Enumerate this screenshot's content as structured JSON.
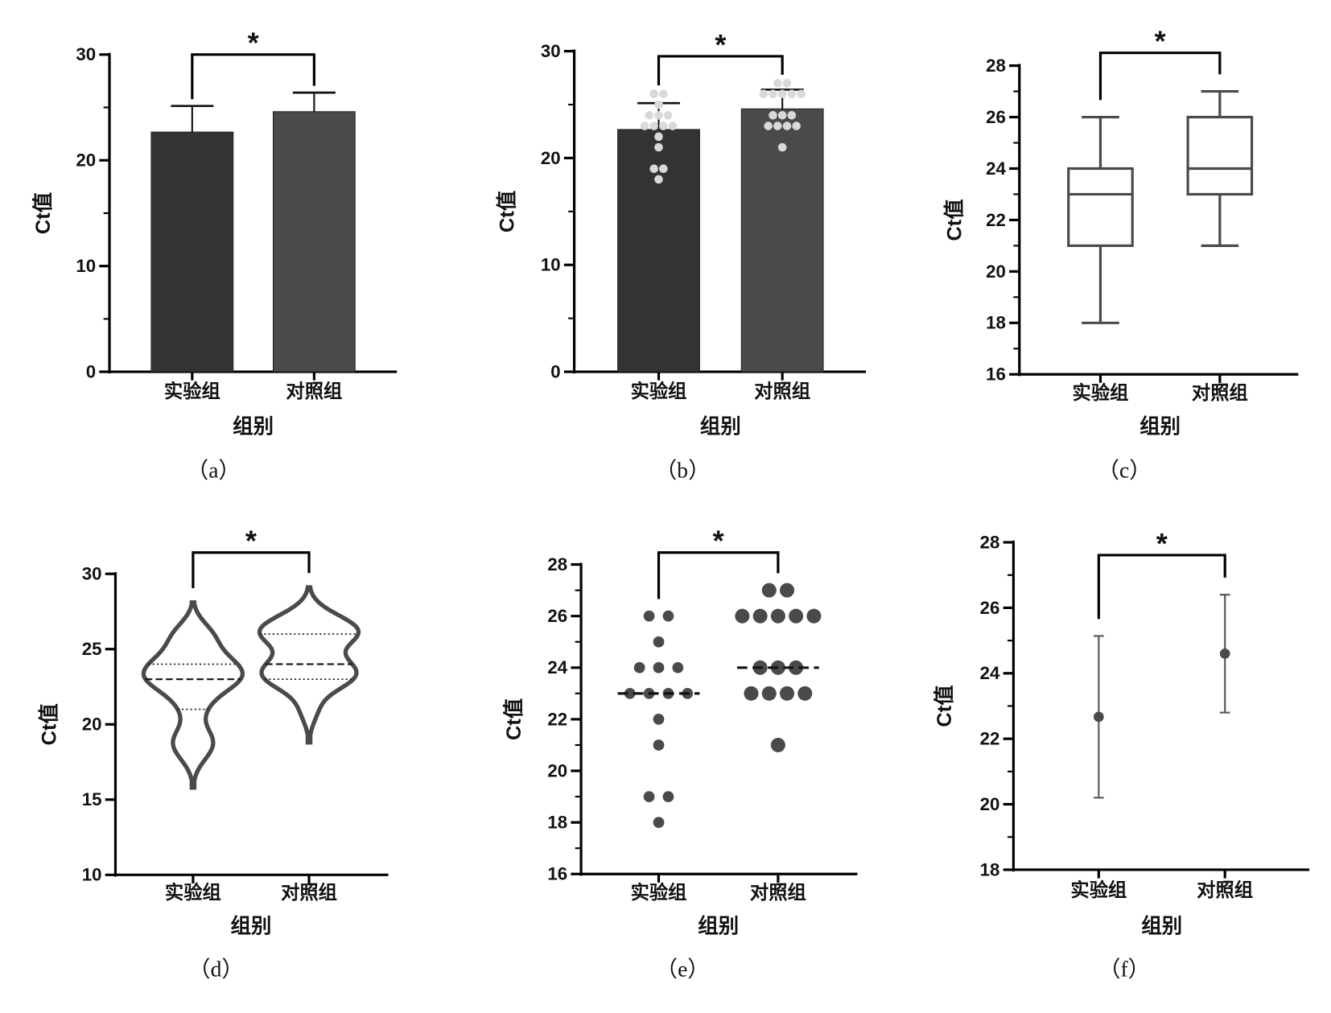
{
  "groups": [
    "实验组",
    "对照组"
  ],
  "chart_data": [
    {
      "id": "a",
      "type": "bar",
      "caption": "（a）",
      "xlabel": "组别",
      "ylabel": "Ct值",
      "ylim": [
        0,
        30
      ],
      "ticks": [
        0,
        10,
        20,
        30
      ],
      "minor_tick_step": 5,
      "significance": "*",
      "colors": [
        "#333333",
        "#4a4a4a"
      ],
      "series": [
        {
          "name": "实验组",
          "mean": 22.67,
          "sd": 2.47
        },
        {
          "name": "对照组",
          "mean": 24.6,
          "sd": 1.8
        }
      ]
    },
    {
      "id": "b",
      "type": "bar",
      "caption": "（b）",
      "xlabel": "组别",
      "ylabel": "Ct值",
      "ylim": [
        0,
        30
      ],
      "ticks": [
        0,
        10,
        20,
        30
      ],
      "minor_tick_step": 5,
      "significance": "*",
      "colors": [
        "#333333",
        "#4a4a4a"
      ],
      "point_color": "#d9d9d9",
      "series": [
        {
          "name": "实验组",
          "mean": 22.67,
          "sd": 2.47,
          "values": [
            26,
            26,
            25,
            24,
            24,
            24,
            23,
            23,
            23,
            23,
            22,
            21,
            19,
            19,
            18
          ]
        },
        {
          "name": "对照组",
          "mean": 24.6,
          "sd": 1.8,
          "values": [
            27,
            27,
            26,
            26,
            26,
            26,
            26,
            24,
            24,
            24,
            23,
            23,
            23,
            23,
            21
          ]
        }
      ]
    },
    {
      "id": "c",
      "type": "box",
      "caption": "（c）",
      "xlabel": "组别",
      "ylabel": "Ct值",
      "ylim": [
        16,
        28
      ],
      "ticks": [
        16,
        18,
        20,
        22,
        24,
        26,
        28
      ],
      "minor_tick_step": 1,
      "significance": "*",
      "series": [
        {
          "name": "实验组",
          "min": 18,
          "q1": 21,
          "median": 23,
          "q3": 24,
          "max": 26
        },
        {
          "name": "对照组",
          "min": 21,
          "q1": 23,
          "median": 24,
          "q3": 26,
          "max": 27
        }
      ]
    },
    {
      "id": "d",
      "type": "violin",
      "caption": "（d）",
      "xlabel": "组别",
      "ylabel": "Ct值",
      "ylim": [
        10,
        30
      ],
      "ticks": [
        10,
        15,
        20,
        25,
        30
      ],
      "minor_tick_step": 0,
      "significance": "*",
      "series": [
        {
          "name": "实验组",
          "q1": 21,
          "median": 23,
          "q3": 24,
          "values": [
            26,
            26,
            25,
            24,
            24,
            24,
            23,
            23,
            23,
            23,
            22,
            21,
            19,
            19,
            18
          ]
        },
        {
          "name": "对照组",
          "q1": 23,
          "median": 24,
          "q3": 26,
          "values": [
            27,
            27,
            26,
            26,
            26,
            26,
            26,
            24,
            24,
            24,
            23,
            23,
            23,
            23,
            21
          ]
        }
      ]
    },
    {
      "id": "e",
      "type": "scatter",
      "caption": "（e）",
      "xlabel": "组别",
      "ylabel": "Ct值",
      "ylim": [
        16,
        28
      ],
      "ticks": [
        16,
        18,
        20,
        22,
        24,
        26,
        28
      ],
      "minor_tick_step": 1,
      "significance": "*",
      "series": [
        {
          "name": "实验组",
          "median": 23,
          "values": [
            26,
            26,
            25,
            24,
            24,
            24,
            23,
            23,
            23,
            23,
            22,
            21,
            19,
            19,
            18
          ]
        },
        {
          "name": "对照组",
          "median": 24,
          "values": [
            27,
            27,
            26,
            26,
            26,
            26,
            26,
            24,
            24,
            24,
            23,
            23,
            23,
            23,
            21
          ]
        }
      ]
    },
    {
      "id": "f",
      "type": "errorbar",
      "caption": "（f）",
      "xlabel": "组别",
      "ylabel": "Ct值",
      "ylim": [
        18,
        28
      ],
      "ticks": [
        18,
        20,
        22,
        24,
        26,
        28
      ],
      "minor_tick_step": 1,
      "significance": "*",
      "series": [
        {
          "name": "实验组",
          "mean": 22.67,
          "sd": 2.47
        },
        {
          "name": "对照组",
          "mean": 24.6,
          "sd": 1.8
        }
      ]
    }
  ]
}
